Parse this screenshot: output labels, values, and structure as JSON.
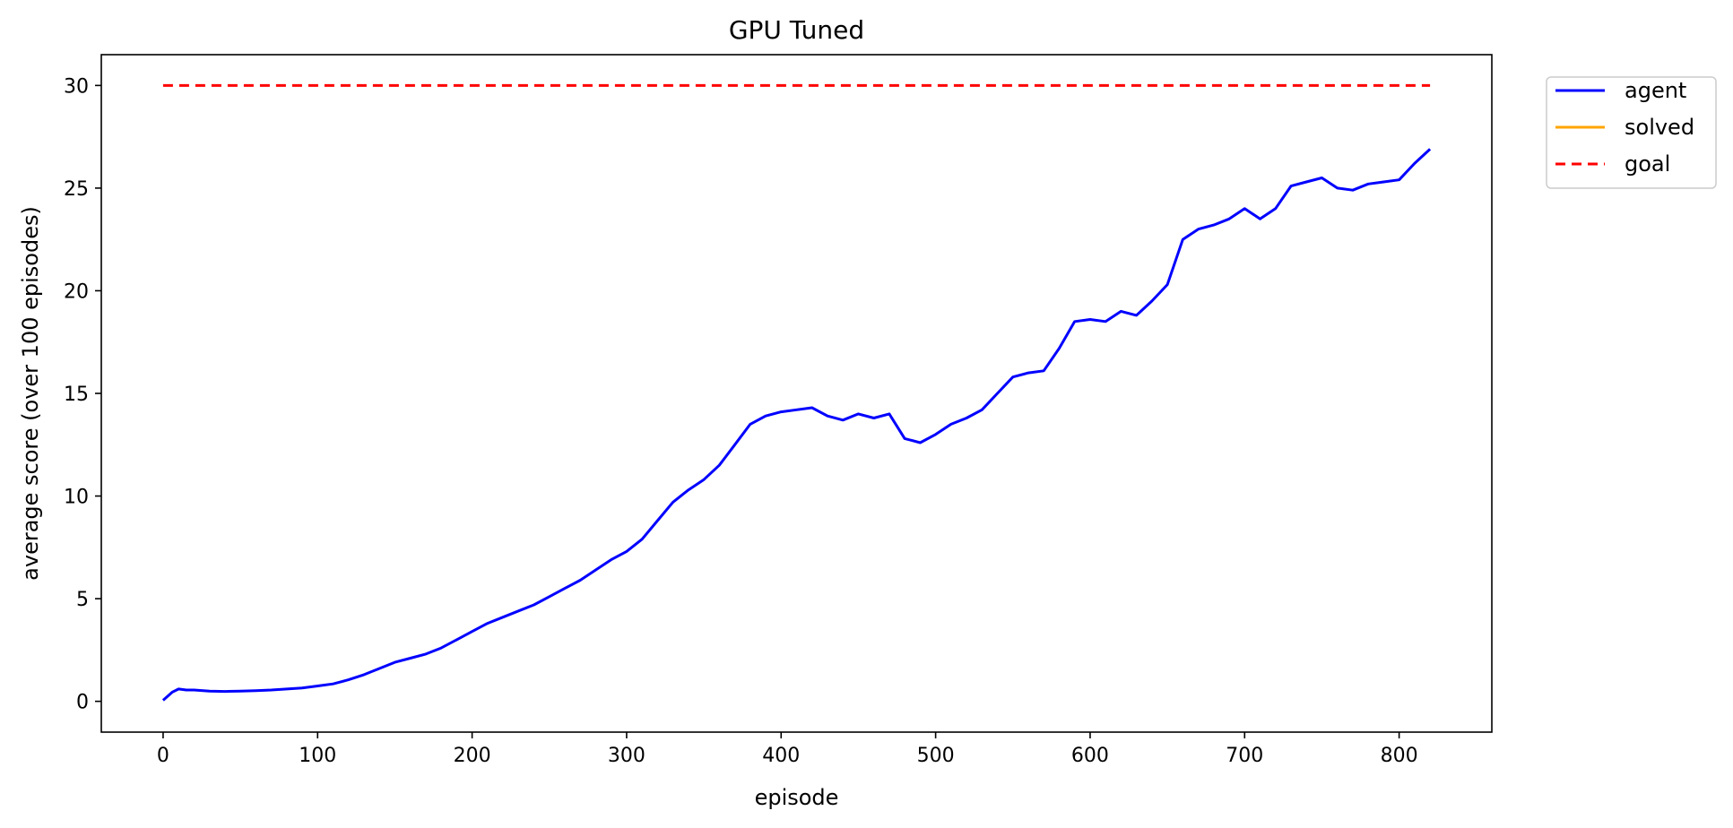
{
  "chart_data": {
    "type": "line",
    "title": "GPU Tuned",
    "xlabel": "episode",
    "ylabel": "average score (over 100 episodes)",
    "xlim": [
      -40,
      860
    ],
    "ylim": [
      -1.5,
      31.5
    ],
    "xticks": [
      0,
      100,
      200,
      300,
      400,
      500,
      600,
      700,
      800
    ],
    "yticks": [
      0,
      5,
      10,
      15,
      20,
      25,
      30
    ],
    "grid": false,
    "legend": {
      "placement": "outside-top-right",
      "entries": [
        {
          "label": "agent",
          "color": "#0000ff",
          "style": "solid"
        },
        {
          "label": "solved",
          "color": "#ffa500",
          "style": "solid"
        },
        {
          "label": "goal",
          "color": "#ff0000",
          "style": "dashed"
        }
      ]
    },
    "series": [
      {
        "name": "agent",
        "color": "#0000ff",
        "style": "solid",
        "x": [
          0,
          3,
          6,
          10,
          15,
          20,
          30,
          40,
          50,
          60,
          70,
          80,
          90,
          100,
          110,
          120,
          130,
          140,
          150,
          160,
          170,
          180,
          190,
          200,
          210,
          220,
          230,
          240,
          250,
          260,
          270,
          280,
          290,
          300,
          310,
          320,
          330,
          340,
          350,
          360,
          370,
          380,
          390,
          400,
          410,
          420,
          430,
          440,
          450,
          460,
          470,
          480,
          490,
          500,
          510,
          520,
          530,
          540,
          550,
          560,
          570,
          580,
          590,
          600,
          610,
          620,
          630,
          640,
          650,
          660,
          670,
          680,
          690,
          700,
          710,
          720,
          730,
          740,
          750,
          760,
          770,
          780,
          790,
          800,
          810,
          820
        ],
        "y": [
          0.05,
          0.25,
          0.45,
          0.6,
          0.55,
          0.55,
          0.5,
          0.48,
          0.5,
          0.52,
          0.55,
          0.6,
          0.65,
          0.75,
          0.85,
          1.05,
          1.3,
          1.6,
          1.9,
          2.1,
          2.3,
          2.6,
          3.0,
          3.4,
          3.8,
          4.1,
          4.4,
          4.7,
          5.1,
          5.5,
          5.9,
          6.4,
          6.9,
          7.3,
          7.9,
          8.8,
          9.7,
          10.3,
          10.8,
          11.5,
          12.5,
          13.5,
          13.9,
          14.1,
          14.2,
          14.3,
          13.9,
          13.7,
          14.0,
          13.8,
          14.0,
          12.8,
          12.6,
          13.0,
          13.5,
          13.8,
          14.2,
          15.0,
          15.8,
          16.0,
          16.1,
          17.2,
          18.5,
          18.6,
          18.5,
          19.0,
          18.8,
          19.5,
          20.3,
          22.5,
          23.0,
          23.2,
          23.5,
          24.0,
          23.5,
          24.0,
          25.1,
          25.3,
          25.5,
          25.0,
          24.9,
          25.2,
          25.3,
          25.4,
          26.2,
          26.9
        ]
      },
      {
        "name": "goal",
        "color": "#ff0000",
        "style": "dashed",
        "x": [
          0,
          820
        ],
        "y": [
          30,
          30
        ]
      }
    ]
  }
}
